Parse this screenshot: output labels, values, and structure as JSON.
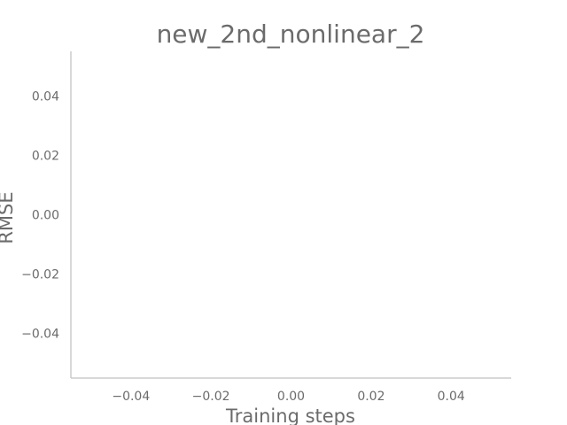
{
  "chart_data": {
    "type": "line",
    "title": "new_2nd_nonlinear_2",
    "xlabel": "Training steps",
    "ylabel": "RMSE",
    "xlim": [
      -0.055,
      0.055
    ],
    "ylim": [
      -0.055,
      0.055
    ],
    "x_ticks": [
      -0.04,
      -0.02,
      0.0,
      0.02,
      0.04
    ],
    "y_ticks": [
      -0.04,
      -0.02,
      0.0,
      0.02,
      0.04
    ],
    "x_tick_labels": [
      "−0.04",
      "−0.02",
      "0.00",
      "0.02",
      "0.04"
    ],
    "y_tick_labels": [
      "−0.04",
      "−0.02",
      "0.00",
      "0.02",
      "0.04"
    ],
    "series": [],
    "grid": false,
    "colors": {
      "text": "#6b6b6b",
      "spine": "#cccccc",
      "background": "#ffffff"
    }
  }
}
